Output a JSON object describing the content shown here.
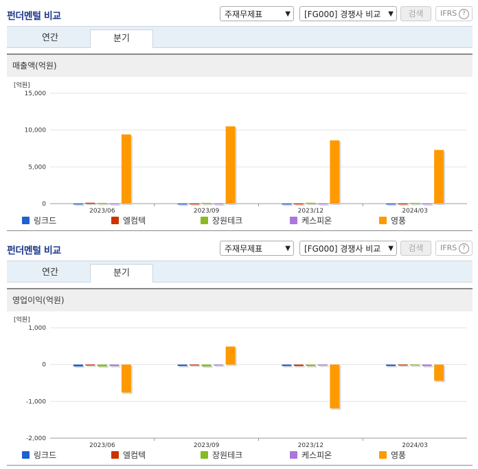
{
  "header": {
    "title": "펀더멘털 비교",
    "select_statement": "주재무제표",
    "select_group": "[FG000] 경쟁사 비교",
    "search_label": "검색",
    "ifrs_label": "IFRS",
    "help_symbol": "?"
  },
  "tabs": [
    {
      "label": "연간"
    },
    {
      "label": "분기"
    }
  ],
  "series_colors": [
    "#2060d0",
    "#cc3300",
    "#88bb22",
    "#aa77dd",
    "#ff9900"
  ],
  "chart_data": [
    {
      "type": "bar",
      "title": "매출액(억원)",
      "unit_label": "[억원]",
      "categories": [
        "2023/06",
        "2023/09",
        "2023/12",
        "2024/03"
      ],
      "ylim": [
        0,
        15000
      ],
      "yticks": [
        0,
        5000,
        10000,
        15000
      ],
      "ytick_labels": [
        "0",
        "5,000",
        "10,000",
        "15,000"
      ],
      "grid": true,
      "legend_position": "bottom",
      "series": [
        {
          "name": "링크드",
          "values": [
            20,
            15,
            15,
            15
          ]
        },
        {
          "name": "엘컴텍",
          "values": [
            120,
            30,
            30,
            30
          ]
        },
        {
          "name": "장원테크",
          "values": [
            100,
            100,
            120,
            100
          ]
        },
        {
          "name": "케스피온",
          "values": [
            40,
            40,
            40,
            40
          ]
        },
        {
          "name": "영풍",
          "values": [
            9400,
            10500,
            8600,
            7300
          ]
        }
      ]
    },
    {
      "type": "bar",
      "title": "영업이익(억원)",
      "unit_label": "[억원]",
      "categories": [
        "2023/06",
        "2023/09",
        "2023/12",
        "2024/03"
      ],
      "ylim": [
        -2000,
        1000
      ],
      "yticks": [
        -2000,
        -1000,
        0,
        1000
      ],
      "ytick_labels": [
        "-2,000",
        "-1,000",
        "0",
        "1,000"
      ],
      "grid": true,
      "legend_position": "bottom",
      "series": [
        {
          "name": "링크드",
          "values": [
            -50,
            -40,
            -40,
            -40
          ]
        },
        {
          "name": "엘컴텍",
          "values": [
            -10,
            -5,
            -40,
            -5
          ]
        },
        {
          "name": "장원테크",
          "values": [
            -50,
            -50,
            -40,
            -10
          ]
        },
        {
          "name": "케스피온",
          "values": [
            -40,
            -5,
            -20,
            -40
          ]
        },
        {
          "name": "영풍",
          "values": [
            -760,
            490,
            -1190,
            -440
          ]
        }
      ]
    }
  ]
}
